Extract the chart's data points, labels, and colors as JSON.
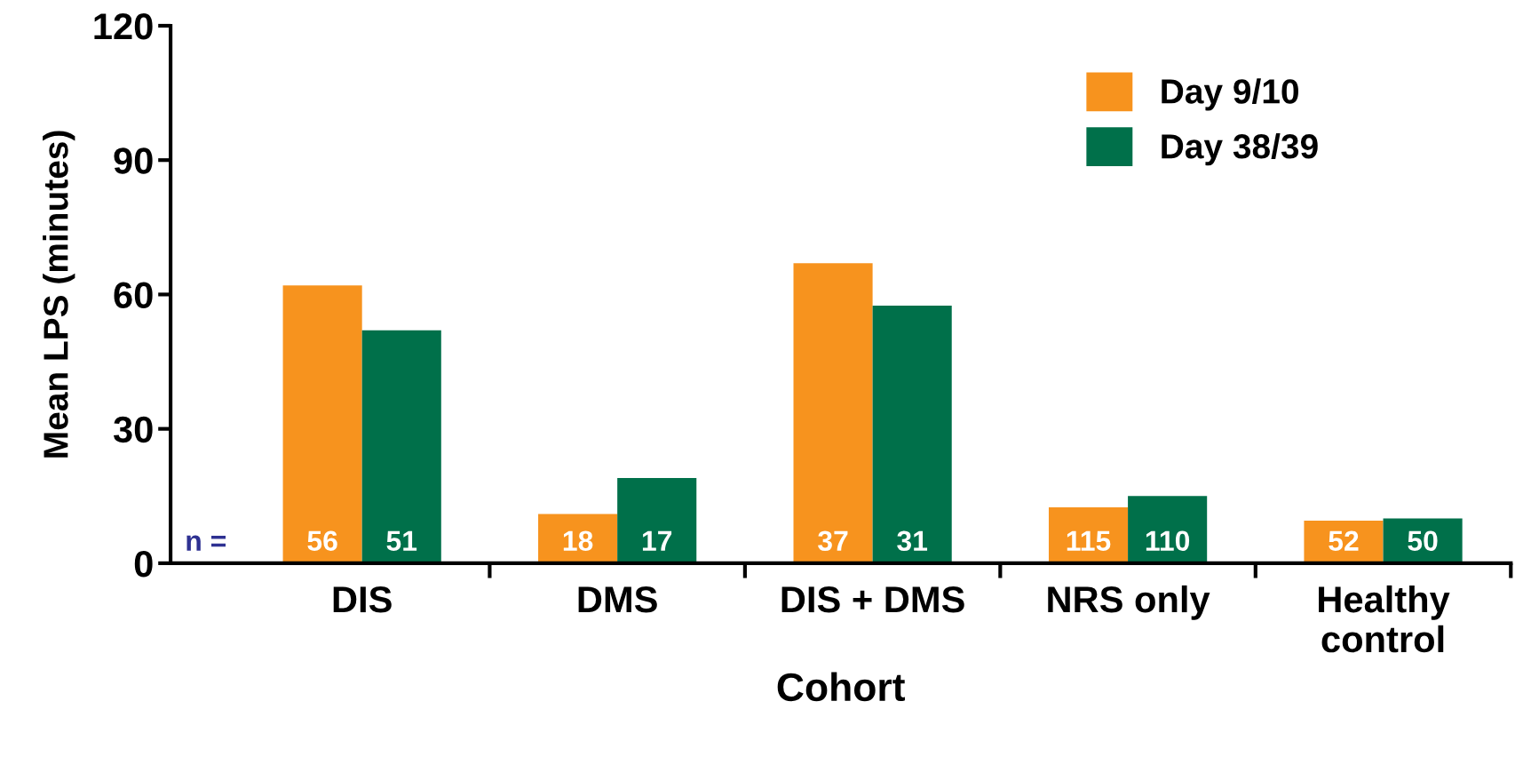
{
  "chart_data": {
    "type": "bar",
    "xlabel": "Cohort",
    "ylabel": "Mean LPS (minutes)",
    "categories": [
      "DIS",
      "DMS",
      "DIS + DMS",
      "NRS only",
      "Healthy\ncontrol"
    ],
    "series": [
      {
        "name": "Day 9/10",
        "color": "#f7931e",
        "values": [
          62,
          11,
          67,
          12.5,
          9.5
        ]
      },
      {
        "name": "Day 38/39",
        "color": "#00704a",
        "values": [
          52,
          19,
          57.5,
          15,
          10
        ]
      }
    ],
    "annotations": [
      "n =",
      "56",
      "51",
      "18",
      "17",
      "37",
      "31",
      "115",
      "110",
      "52",
      "50"
    ],
    "ylim": [
      0,
      120
    ],
    "yticks": [
      0,
      30,
      60,
      90,
      120
    ],
    "grid": false,
    "legend": "top right"
  }
}
